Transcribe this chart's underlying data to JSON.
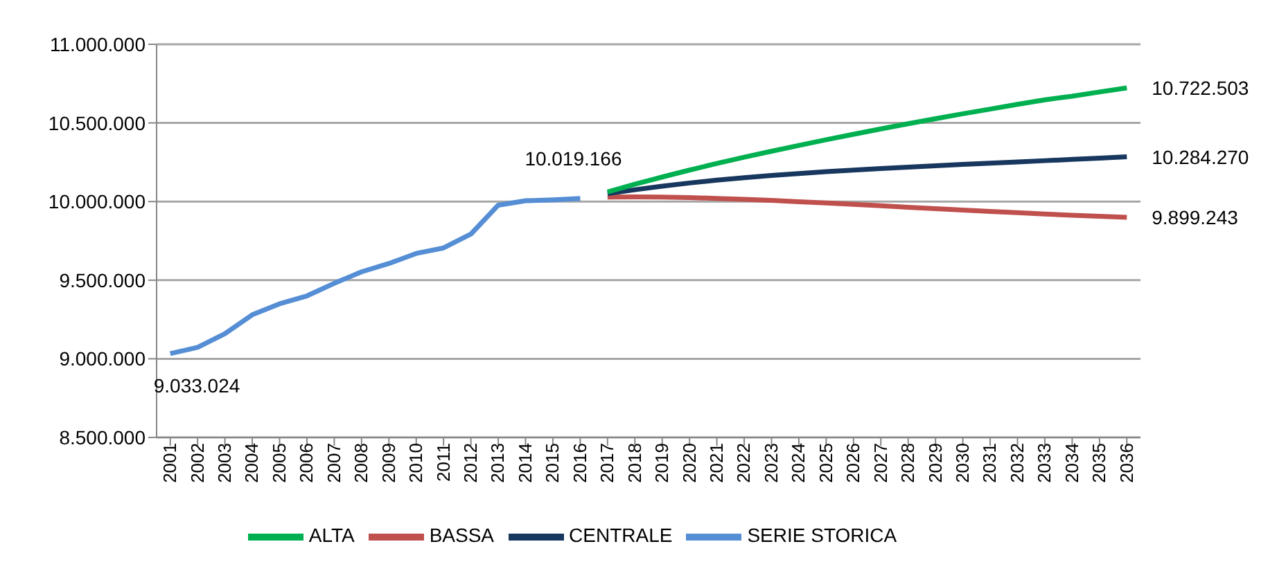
{
  "chart_data": {
    "type": "line",
    "categories": [
      "2001",
      "2002",
      "2003",
      "2004",
      "2005",
      "2006",
      "2007",
      "2008",
      "2009",
      "2010",
      "2011",
      "2012",
      "2013",
      "2014",
      "2015",
      "2016",
      "2017",
      "2018",
      "2019",
      "2020",
      "2021",
      "2022",
      "2023",
      "2024",
      "2025",
      "2026",
      "2027",
      "2028",
      "2029",
      "2030",
      "2031",
      "2032",
      "2033",
      "2034",
      "2035",
      "2036"
    ],
    "series": [
      {
        "name": "SERIE STORICA",
        "color": "#558ed5",
        "values": [
          9033024,
          9073000,
          9160000,
          9280000,
          9350000,
          9400000,
          9480000,
          9553000,
          9606000,
          9670000,
          9705000,
          9793000,
          9977000,
          10005000,
          10011000,
          10019166,
          null,
          null,
          null,
          null,
          null,
          null,
          null,
          null,
          null,
          null,
          null,
          null,
          null,
          null,
          null,
          null,
          null,
          null,
          null,
          null
        ]
      },
      {
        "name": "BASSA",
        "color": "#c0504d",
        "values": [
          null,
          null,
          null,
          null,
          null,
          null,
          null,
          null,
          null,
          null,
          null,
          null,
          null,
          null,
          null,
          null,
          10028000,
          10029000,
          10028000,
          10025000,
          10020000,
          10014000,
          10007000,
          9999000,
          9991000,
          9982000,
          9973000,
          9964000,
          9955000,
          9946000,
          9937000,
          9929000,
          9921000,
          9913000,
          9906000,
          9899243
        ]
      },
      {
        "name": "CENTRALE",
        "color": "#17375e",
        "values": [
          null,
          null,
          null,
          null,
          null,
          null,
          null,
          null,
          null,
          null,
          null,
          null,
          null,
          null,
          null,
          null,
          10050000,
          10075000,
          10098000,
          10118000,
          10136000,
          10152000,
          10166000,
          10178000,
          10190000,
          10200000,
          10210000,
          10219000,
          10228000,
          10236000,
          10244000,
          10252000,
          10260000,
          10268000,
          10276000,
          10284270
        ]
      },
      {
        "name": "ALTA",
        "color": "#00b050",
        "values": [
          null,
          null,
          null,
          null,
          null,
          null,
          null,
          null,
          null,
          null,
          null,
          null,
          null,
          null,
          null,
          null,
          10061000,
          10110000,
          10156000,
          10200000,
          10242000,
          10282000,
          10320000,
          10357000,
          10393000,
          10428000,
          10462000,
          10495000,
          10527000,
          10558000,
          10588000,
          10618000,
          10647000,
          10670000,
          10697000,
          10722503
        ]
      }
    ],
    "ylim": [
      8500000,
      11000000
    ],
    "yticks": [
      {
        "value": 8500000,
        "label": "8.500.000"
      },
      {
        "value": 9000000,
        "label": "9.000.000"
      },
      {
        "value": 9500000,
        "label": "9.500.000"
      },
      {
        "value": 10000000,
        "label": "10.000.000"
      },
      {
        "value": 10500000,
        "label": "10.500.000"
      },
      {
        "value": 11000000,
        "label": "11.000.000"
      }
    ],
    "grid": "y",
    "legend": "bottom",
    "marker": "none",
    "line_style": "solid",
    "annotations": [
      {
        "text": "9.033.024",
        "x": "2001",
        "y": 9033024
      },
      {
        "text": "10.019.166",
        "x": "2016",
        "y": 10019166
      },
      {
        "text": "10.722.503",
        "x": "2036",
        "y": 10722503
      },
      {
        "text": "10.284.270",
        "x": "2036",
        "y": 10284270
      },
      {
        "text": "9.899.243",
        "x": "2036",
        "y": 9899243
      }
    ]
  }
}
